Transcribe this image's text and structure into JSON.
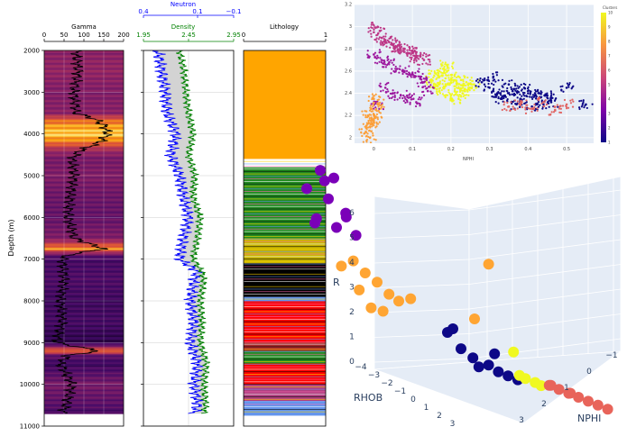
{
  "chart_data": [
    {
      "type": "line",
      "panel": "well-log-tracks",
      "ylabel": "Depth (m)",
      "depth_ticks": [
        "2000",
        "3000",
        "4000",
        "5000",
        "6000",
        "7000",
        "8000",
        "9000",
        "10000",
        "11000"
      ],
      "ylim": [
        2000,
        11000
      ],
      "tracks": [
        {
          "title": "Gamma",
          "xlim": [
            0,
            200
          ],
          "ticks": [
            "0",
            "50",
            "100",
            "150",
            "200"
          ],
          "colormap": "inferno",
          "series": [
            {
              "depth": [
                2000,
                2500,
                3000,
                3500,
                3650,
                3800,
                4000,
                4200,
                4400,
                4600,
                5000,
                5500,
                6000,
                6500,
                6750,
                6900,
                7000,
                7500,
                8000,
                8500,
                8800,
                9000,
                9200,
                9300,
                9500,
                10000,
                10500,
                10700
              ],
              "values": [
                80,
                85,
                75,
                80,
                130,
                150,
                160,
                140,
                90,
                70,
                75,
                65,
                60,
                75,
                150,
                60,
                45,
                50,
                40,
                45,
                35,
                30,
                140,
                60,
                40,
                70,
                55,
                45
              ]
            }
          ]
        },
        {
          "title": "Density",
          "scale2_title": "Neutron",
          "xlim": [
            1.95,
            2.95
          ],
          "ticks": [
            "1.95",
            "2.45",
            "2.95"
          ],
          "scale2_ticks": [
            "0.4",
            "0.1",
            "−0.1"
          ],
          "colors": {
            "density": "#008000",
            "neutron": "#0000ff",
            "fill_gas": "#d3d3d3",
            "fill_crossover": "#ffff00"
          },
          "series": [
            {
              "name": "Density",
              "depth": [
                2000,
                2500,
                3000,
                3500,
                4000,
                4500,
                5000,
                5500,
                6000,
                6500,
                7000,
                7300,
                7500,
                8000,
                8500,
                9000,
                9500,
                10000,
                10500,
                10700
              ],
              "values": [
                2.35,
                2.4,
                2.42,
                2.45,
                2.5,
                2.45,
                2.52,
                2.5,
                2.58,
                2.55,
                2.5,
                2.6,
                2.62,
                2.58,
                2.6,
                2.58,
                2.65,
                2.62,
                2.64,
                2.62
              ]
            },
            {
              "name": "Neutron",
              "depth": [
                2000,
                2500,
                3000,
                3500,
                4000,
                4500,
                5000,
                5500,
                6000,
                6500,
                7000,
                7300,
                7500,
                8000,
                8500,
                9000,
                9500,
                10000,
                10500,
                10700
              ],
              "values": [
                0.32,
                0.3,
                0.28,
                0.27,
                0.22,
                0.25,
                0.2,
                0.18,
                0.15,
                0.18,
                0.2,
                0.1,
                0.12,
                0.14,
                0.12,
                0.14,
                0.1,
                0.12,
                0.1,
                0.12
              ]
            }
          ]
        },
        {
          "title": "Lithology",
          "xlim": [
            0,
            1
          ],
          "ticks": [
            "0",
            "1"
          ],
          "intervals": [
            {
              "top": 2000,
              "base": 4600,
              "color": "#ffa500"
            },
            {
              "top": 4600,
              "base": 4800,
              "color": "#ffffff"
            },
            {
              "top": 4800,
              "base": 6500,
              "color": "#228b22"
            },
            {
              "top": 6500,
              "base": 7100,
              "color": "#c8b400"
            },
            {
              "top": 7100,
              "base": 7900,
              "color": "#000000"
            },
            {
              "top": 7900,
              "base": 8000,
              "color": "#6495ed"
            },
            {
              "top": 8000,
              "base": 9000,
              "color": "#ff0000"
            },
            {
              "top": 9000,
              "base": 9200,
              "color": "#a52a2a"
            },
            {
              "top": 9200,
              "base": 9500,
              "color": "#228b22"
            },
            {
              "top": 9500,
              "base": 10000,
              "color": "#ff0000"
            },
            {
              "top": 10000,
              "base": 10400,
              "color": "#b04080"
            },
            {
              "top": 10400,
              "base": 10750,
              "color": "#6495ed"
            }
          ]
        }
      ]
    },
    {
      "type": "scatter",
      "panel": "crossplot-2d",
      "xlabel": "NPHI",
      "ylabel": "",
      "xlim": [
        -0.05,
        0.57
      ],
      "ylim": [
        1.95,
        3.2
      ],
      "x_ticks": [
        "0",
        "0.1",
        "0.2",
        "0.3",
        "0.4",
        "0.5"
      ],
      "y_ticks": [
        "2",
        "2.2",
        "2.4",
        "2.6",
        "2.8",
        "3",
        "3.2"
      ],
      "colorbar": {
        "title": "Clusters",
        "ticks": [
          "1",
          "2",
          "3",
          "4",
          "5",
          "6",
          "7",
          "8",
          "9",
          "10"
        ],
        "range": [
          1,
          10
        ]
      },
      "series": [
        {
          "cluster": 10,
          "color": "#f0f921",
          "x": [
            0.15,
            0.16,
            0.17,
            0.18,
            0.19,
            0.2,
            0.21,
            0.22,
            0.23,
            0.24,
            0.18,
            0.2,
            0.22,
            0.25,
            0.16,
            0.19,
            0.21,
            0.23,
            0.17,
            0.26
          ],
          "y": [
            2.52,
            2.48,
            2.55,
            2.45,
            2.6,
            2.5,
            2.42,
            2.55,
            2.47,
            2.5,
            2.62,
            2.38,
            2.35,
            2.45,
            2.58,
            2.65,
            2.52,
            2.4,
            2.42,
            2.48
          ]
        },
        {
          "cluster": 1,
          "color": "#0d0887",
          "x": [
            0.28,
            0.3,
            0.32,
            0.34,
            0.36,
            0.38,
            0.4,
            0.42,
            0.44,
            0.46,
            0.35,
            0.37,
            0.39,
            0.41,
            0.43,
            0.33,
            0.31,
            0.45,
            0.5,
            0.55
          ],
          "y": [
            2.5,
            2.45,
            2.4,
            2.38,
            2.42,
            2.35,
            2.4,
            2.38,
            2.3,
            2.32,
            2.48,
            2.3,
            2.45,
            2.28,
            2.4,
            2.35,
            2.55,
            2.38,
            2.45,
            2.3
          ]
        },
        {
          "cluster": 4,
          "color": "#9c179e",
          "x": [
            0.0,
            0.02,
            0.04,
            0.06,
            0.08,
            0.1,
            0.12,
            0.03,
            0.05,
            0.07,
            0.09,
            0.11,
            0.01,
            0.13,
            0.14
          ],
          "y": [
            2.75,
            2.7,
            2.68,
            2.62,
            2.6,
            2.58,
            2.55,
            2.45,
            2.4,
            2.38,
            2.36,
            2.32,
            2.3,
            2.5,
            2.42
          ]
        },
        {
          "cluster": 6,
          "color": "#bd3786",
          "x": [
            0.0,
            0.02,
            0.04,
            0.06,
            0.08,
            0.1,
            0.12,
            0.01,
            0.03,
            0.05,
            0.07,
            0.09,
            0.11,
            0.13
          ],
          "y": [
            2.95,
            2.9,
            2.86,
            2.82,
            2.8,
            2.78,
            2.74,
            3.0,
            2.88,
            2.84,
            2.8,
            2.76,
            2.72,
            2.7
          ]
        },
        {
          "cluster": 8,
          "color": "#fb9f3a",
          "x": [
            -0.02,
            -0.01,
            0.0,
            -0.015,
            0.005,
            -0.005,
            0.01,
            -0.01,
            0.0,
            0.005
          ],
          "y": [
            2.05,
            2.1,
            2.15,
            2.2,
            2.25,
            2.12,
            2.3,
            2.0,
            2.35,
            2.18
          ]
        },
        {
          "cluster": 7,
          "color": "#e16462",
          "x": [
            0.35,
            0.38,
            0.41,
            0.44,
            0.47,
            0.5
          ],
          "y": [
            2.28,
            2.3,
            2.26,
            2.32,
            2.25,
            2.3
          ]
        }
      ]
    },
    {
      "type": "scatter",
      "panel": "crossplot-3d",
      "xlabel": "RHOB",
      "ylabel": "NPHI",
      "zlabel": "R",
      "z_ticks": [
        "6",
        "5",
        "4",
        "3",
        "2",
        "1",
        "0"
      ],
      "x_ticks": [
        "−4",
        "−3",
        "−2",
        "−1",
        "0",
        "1",
        "2",
        "3"
      ],
      "y_ticks": [
        "3",
        "2",
        "1",
        "0",
        "−1"
      ],
      "series": [
        {
          "color": "#7a00b8",
          "points": [
            [
              -2.5,
              2.5,
              6.2
            ],
            [
              -2.2,
              2.4,
              6.0
            ],
            [
              -2.8,
              2.6,
              5.5
            ],
            [
              -2.4,
              2.3,
              5.2
            ],
            [
              -2.0,
              2.2,
              4.8
            ],
            [
              -2.6,
              2.5,
              4.5
            ],
            [
              -2.3,
              2.1,
              4.2
            ],
            [
              -2.1,
              2.0,
              4.6
            ],
            [
              -2.7,
              2.4,
              4.3
            ],
            [
              -1.9,
              1.9,
              4.0
            ],
            [
              -2.5,
              2.3,
              5.8
            ]
          ]
        },
        {
          "color": "#ffa533",
          "points": [
            [
              -1.8,
              2.2,
              3.2
            ],
            [
              -1.6,
              2.0,
              2.8
            ],
            [
              -1.4,
              1.8,
              2.5
            ],
            [
              -1.2,
              1.6,
              2.1
            ],
            [
              -1.0,
              1.5,
              1.9
            ],
            [
              -1.7,
              2.1,
              2.2
            ],
            [
              -1.5,
              1.9,
              1.6
            ],
            [
              -2.0,
              2.4,
              3.0
            ],
            [
              -0.8,
              1.3,
              2.0
            ],
            [
              -1.3,
              1.7,
              1.5
            ],
            [
              0.8,
              0.5,
              3.5
            ],
            [
              0.6,
              0.8,
              1.6
            ]
          ]
        },
        {
          "color": "#0d0887",
          "points": [
            [
              0.0,
              1.0,
              1.0
            ],
            [
              0.3,
              0.9,
              0.5
            ],
            [
              0.5,
              0.7,
              0.2
            ],
            [
              0.8,
              0.5,
              0.0
            ],
            [
              1.0,
              0.4,
              -0.2
            ],
            [
              1.2,
              0.3,
              -0.3
            ],
            [
              0.6,
              0.6,
              -0.1
            ],
            [
              0.9,
              0.4,
              0.4
            ],
            [
              1.4,
              0.2,
              -0.4
            ],
            [
              0.2,
              1.1,
              1.2
            ]
          ]
        },
        {
          "color": "#f0f921",
          "points": [
            [
              1.6,
              0.2,
              -0.3
            ],
            [
              1.8,
              0.1,
              -0.4
            ],
            [
              1.5,
              0.3,
              -0.2
            ],
            [
              1.9,
              0.0,
              -0.5
            ],
            [
              1.4,
              0.4,
              0.6
            ]
          ]
        },
        {
          "color": "#e8645a",
          "points": [
            [
              2.0,
              -0.2,
              -0.5
            ],
            [
              2.2,
              -0.3,
              -0.6
            ],
            [
              2.4,
              -0.4,
              -0.7
            ],
            [
              2.6,
              -0.5,
              -0.8
            ],
            [
              2.8,
              -0.6,
              -0.9
            ],
            [
              3.0,
              -0.7,
              -1.0
            ],
            [
              3.2,
              -0.8,
              -1.1
            ],
            [
              2.1,
              -0.1,
              -0.45
            ],
            [
              2.5,
              -0.3,
              -0.65
            ]
          ]
        }
      ]
    }
  ]
}
